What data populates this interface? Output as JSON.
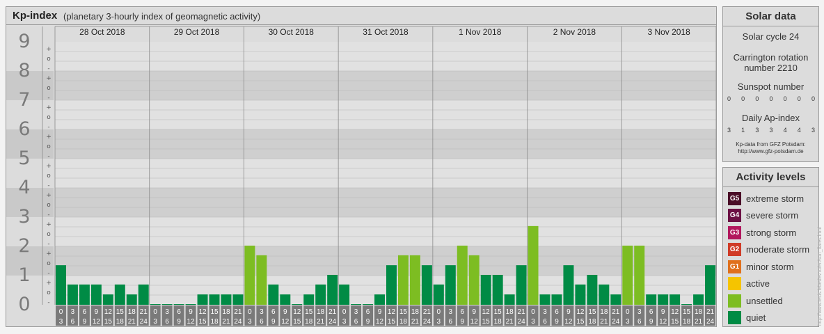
{
  "header": {
    "title": "Kp-index",
    "subtitle": "(planetary 3-hourly index of geomagnetic activity)"
  },
  "chart_data": {
    "type": "bar",
    "title": "Kp-index",
    "subtitle": "(planetary 3-hourly index of geomagnetic activity)",
    "ylim": [
      0,
      9
    ],
    "y_ticks": [
      "0",
      "1",
      "2",
      "3",
      "4",
      "5",
      "6",
      "7",
      "8",
      "9"
    ],
    "minor_ticks": [
      "-",
      "o",
      "+"
    ],
    "days": [
      "28 Oct 2018",
      "29 Oct 2018",
      "30 Oct 2018",
      "31 Oct 2018",
      "1 Nov 2018",
      "2 Nov 2018",
      "3 Nov 2018"
    ],
    "interval_top": [
      "0",
      "3",
      "6",
      "9",
      "12",
      "15",
      "18",
      "21"
    ],
    "interval_bottom": [
      "3",
      "6",
      "9",
      "12",
      "15",
      "18",
      "21",
      "24"
    ],
    "series": [
      {
        "values": [
          1.33,
          0.67,
          0.67,
          0.67,
          0.33,
          0.67,
          0.33,
          0.67,
          0.0,
          0.0,
          0.0,
          0.0,
          0.33,
          0.33,
          0.33,
          0.33,
          2.0,
          1.67,
          0.67,
          0.33,
          0.0,
          0.33,
          0.67,
          1.0,
          0.67,
          0.0,
          0.0,
          0.33,
          1.33,
          1.67,
          1.67,
          1.33,
          0.67,
          1.33,
          2.0,
          1.67,
          1.0,
          1.0,
          0.33,
          1.33,
          2.67,
          0.33,
          0.33,
          1.33,
          0.67,
          1.0,
          0.67,
          0.33,
          2.0,
          2.0,
          0.33,
          0.33,
          0.33,
          0.0,
          0.33,
          1.33
        ]
      }
    ],
    "colors": {
      "quiet": "#008b45",
      "unsettled": "#7dbd22",
      "active": "#f5c400",
      "minor": "#e0701c",
      "moderate": "#d03b27",
      "strong": "#b2175d",
      "severe": "#6c1044",
      "extreme": "#4a0d27"
    },
    "grid": true
  },
  "solar": {
    "title": "Solar data",
    "cycle": "Solar cycle 24",
    "carrington1": "Carrington rotation",
    "carrington2": "number 2210",
    "sunspot_label": "Sunspot number",
    "sunspot_values": [
      "0",
      "0",
      "0",
      "0",
      "0",
      "0",
      "0"
    ],
    "ap_label": "Daily Ap-index",
    "ap_values": [
      "3",
      "1",
      "3",
      "3",
      "4",
      "4",
      "3"
    ],
    "source1": "Kp-data from GFZ Potsdam:",
    "source2": "http://www.gfz-potsdam.de"
  },
  "levels": {
    "title": "Activity levels",
    "items": [
      {
        "code": "G5",
        "label": "extreme storm",
        "color": "#4a0d27"
      },
      {
        "code": "G4",
        "label": "severe storm",
        "color": "#6c1044"
      },
      {
        "code": "G3",
        "label": "strong storm",
        "color": "#b2175d"
      },
      {
        "code": "G2",
        "label": "moderate storm",
        "color": "#d03b27"
      },
      {
        "code": "G1",
        "label": "minor storm",
        "color": "#e0701c"
      },
      {
        "code": "",
        "label": "active",
        "color": "#f5c400"
      },
      {
        "code": "",
        "label": "unsettled",
        "color": "#7dbd22"
      },
      {
        "code": "",
        "label": "quiet",
        "color": "#008b45"
      }
    ]
  },
  "watermark": "http://www.tesis.lebedev.ru/en/sun_flares.html"
}
